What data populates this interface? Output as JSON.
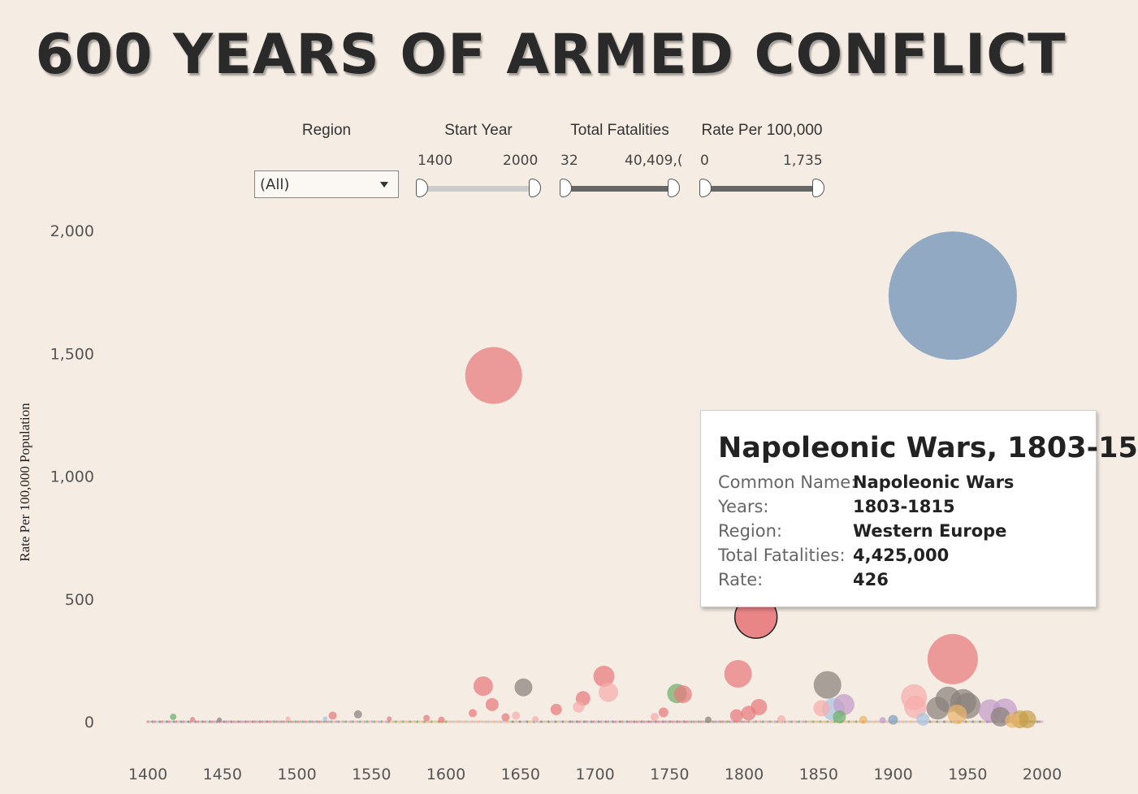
{
  "title": "600 YEARS OF ARMED CONFLICT",
  "filters": {
    "region": {
      "label": "Region",
      "value": "(All)"
    },
    "start_year": {
      "label": "Start Year",
      "min": "1400",
      "max": "2000",
      "fill_color": "#cccccc"
    },
    "total_fatalities": {
      "label": "Total Fatalities",
      "min": "32",
      "max": "40,409,(",
      "fill_color": "#666666"
    },
    "rate": {
      "label": "Rate Per 100,000",
      "min": "0",
      "max": "1,735",
      "fill_color": "#666666"
    }
  },
  "tooltip": {
    "title": "Napoleonic Wars, 1803-15",
    "rows": [
      {
        "key": "Common Name:",
        "value": "Napoleonic Wars"
      },
      {
        "key": "Years:",
        "value": "1803-1815"
      },
      {
        "key": "Region:",
        "value": "Western Europe"
      },
      {
        "key": "Total Fatalities:",
        "value": "4,425,000"
      },
      {
        "key": "Rate:",
        "value": "426"
      }
    ]
  },
  "chart_data": {
    "type": "scatter",
    "ylabel": "Rate Per 100,000 Population",
    "xlabel": "",
    "xlim": [
      1400,
      2000
    ],
    "ylim": [
      0,
      2000
    ],
    "x_ticks": [
      "1400",
      "1450",
      "1500",
      "1550",
      "1600",
      "1650",
      "1700",
      "1750",
      "1800",
      "1850",
      "1900",
      "1950",
      "2000"
    ],
    "y_ticks": [
      "0",
      "500",
      "1,000",
      "1,500",
      "2,000"
    ],
    "colors": {
      "red": "#e8787c",
      "pink": "#f7adac",
      "gray": "#8a817c",
      "green": "#6fae6a",
      "blue": "#7f9cbc",
      "purple": "#c39bc9",
      "lightblue": "#a9c3e0",
      "orange": "#e9b46a",
      "olive": "#c6a04a"
    },
    "points": [
      {
        "x": 1632,
        "y": 1410,
        "size": 35,
        "color": "red"
      },
      {
        "x": 1940,
        "y": 1735,
        "size": 79,
        "color": "blue"
      },
      {
        "x": 1808,
        "y": 426,
        "size": 26,
        "color": "red",
        "selected": true
      },
      {
        "x": 1940,
        "y": 255,
        "size": 31,
        "color": "red"
      },
      {
        "x": 1625,
        "y": 145,
        "size": 12,
        "color": "red"
      },
      {
        "x": 1652,
        "y": 140,
        "size": 11,
        "color": "gray"
      },
      {
        "x": 1631,
        "y": 70,
        "size": 8,
        "color": "red"
      },
      {
        "x": 1706,
        "y": 185,
        "size": 13,
        "color": "red"
      },
      {
        "x": 1709,
        "y": 120,
        "size": 12,
        "color": "pink"
      },
      {
        "x": 1692,
        "y": 95,
        "size": 9,
        "color": "red"
      },
      {
        "x": 1689,
        "y": 60,
        "size": 7,
        "color": "pink"
      },
      {
        "x": 1674,
        "y": 50,
        "size": 7,
        "color": "red"
      },
      {
        "x": 1755,
        "y": 115,
        "size": 12,
        "color": "green"
      },
      {
        "x": 1759,
        "y": 112,
        "size": 11,
        "color": "red"
      },
      {
        "x": 1746,
        "y": 38,
        "size": 6,
        "color": "red"
      },
      {
        "x": 1796,
        "y": 195,
        "size": 17,
        "color": "red"
      },
      {
        "x": 1810,
        "y": 60,
        "size": 10,
        "color": "red"
      },
      {
        "x": 1803,
        "y": 35,
        "size": 9,
        "color": "red"
      },
      {
        "x": 1795,
        "y": 25,
        "size": 8,
        "color": "red"
      },
      {
        "x": 1856,
        "y": 150,
        "size": 17,
        "color": "gray"
      },
      {
        "x": 1867,
        "y": 70,
        "size": 13,
        "color": "purple"
      },
      {
        "x": 1860,
        "y": 50,
        "size": 14,
        "color": "lightblue"
      },
      {
        "x": 1852,
        "y": 55,
        "size": 10,
        "color": "pink"
      },
      {
        "x": 1864,
        "y": 20,
        "size": 8,
        "color": "green"
      },
      {
        "x": 1914,
        "y": 100,
        "size": 16,
        "color": "pink"
      },
      {
        "x": 1915,
        "y": 60,
        "size": 14,
        "color": "pink"
      },
      {
        "x": 1937,
        "y": 90,
        "size": 16,
        "color": "gray"
      },
      {
        "x": 1947,
        "y": 80,
        "size": 16,
        "color": "gray"
      },
      {
        "x": 1950,
        "y": 65,
        "size": 16,
        "color": "gray"
      },
      {
        "x": 1930,
        "y": 55,
        "size": 14,
        "color": "gray"
      },
      {
        "x": 1943,
        "y": 30,
        "size": 12,
        "color": "orange"
      },
      {
        "x": 1965,
        "y": 45,
        "size": 14,
        "color": "purple"
      },
      {
        "x": 1975,
        "y": 45,
        "size": 15,
        "color": "purple"
      },
      {
        "x": 1972,
        "y": 20,
        "size": 12,
        "color": "gray"
      },
      {
        "x": 1985,
        "y": 10,
        "size": 11,
        "color": "olive"
      },
      {
        "x": 1990,
        "y": 10,
        "size": 11,
        "color": "olive"
      },
      {
        "x": 1980,
        "y": 5,
        "size": 9,
        "color": "orange"
      },
      {
        "x": 1920,
        "y": 10,
        "size": 8,
        "color": "lightblue"
      },
      {
        "x": 1900,
        "y": 8,
        "size": 6,
        "color": "blue"
      },
      {
        "x": 1417,
        "y": 20,
        "size": 4,
        "color": "green"
      },
      {
        "x": 1430,
        "y": 10,
        "size": 3,
        "color": "red"
      },
      {
        "x": 1448,
        "y": 8,
        "size": 3,
        "color": "gray"
      },
      {
        "x": 1494,
        "y": 12,
        "size": 3,
        "color": "pink"
      },
      {
        "x": 1519,
        "y": 12,
        "size": 3,
        "color": "lightblue"
      },
      {
        "x": 1524,
        "y": 25,
        "size": 5,
        "color": "red"
      },
      {
        "x": 1541,
        "y": 30,
        "size": 5,
        "color": "gray"
      },
      {
        "x": 1562,
        "y": 12,
        "size": 3,
        "color": "red"
      },
      {
        "x": 1587,
        "y": 15,
        "size": 4,
        "color": "red"
      },
      {
        "x": 1597,
        "y": 8,
        "size": 4,
        "color": "red"
      },
      {
        "x": 1618,
        "y": 35,
        "size": 5,
        "color": "red"
      },
      {
        "x": 1640,
        "y": 18,
        "size": 5,
        "color": "red"
      },
      {
        "x": 1647,
        "y": 25,
        "size": 5,
        "color": "pink"
      },
      {
        "x": 1660,
        "y": 10,
        "size": 4,
        "color": "pink"
      },
      {
        "x": 1740,
        "y": 20,
        "size": 5,
        "color": "pink"
      },
      {
        "x": 1776,
        "y": 8,
        "size": 4,
        "color": "gray"
      },
      {
        "x": 1825,
        "y": 10,
        "size": 5,
        "color": "pink"
      },
      {
        "x": 1880,
        "y": 8,
        "size": 5,
        "color": "orange"
      },
      {
        "x": 1893,
        "y": 6,
        "size": 4,
        "color": "purple"
      }
    ]
  }
}
